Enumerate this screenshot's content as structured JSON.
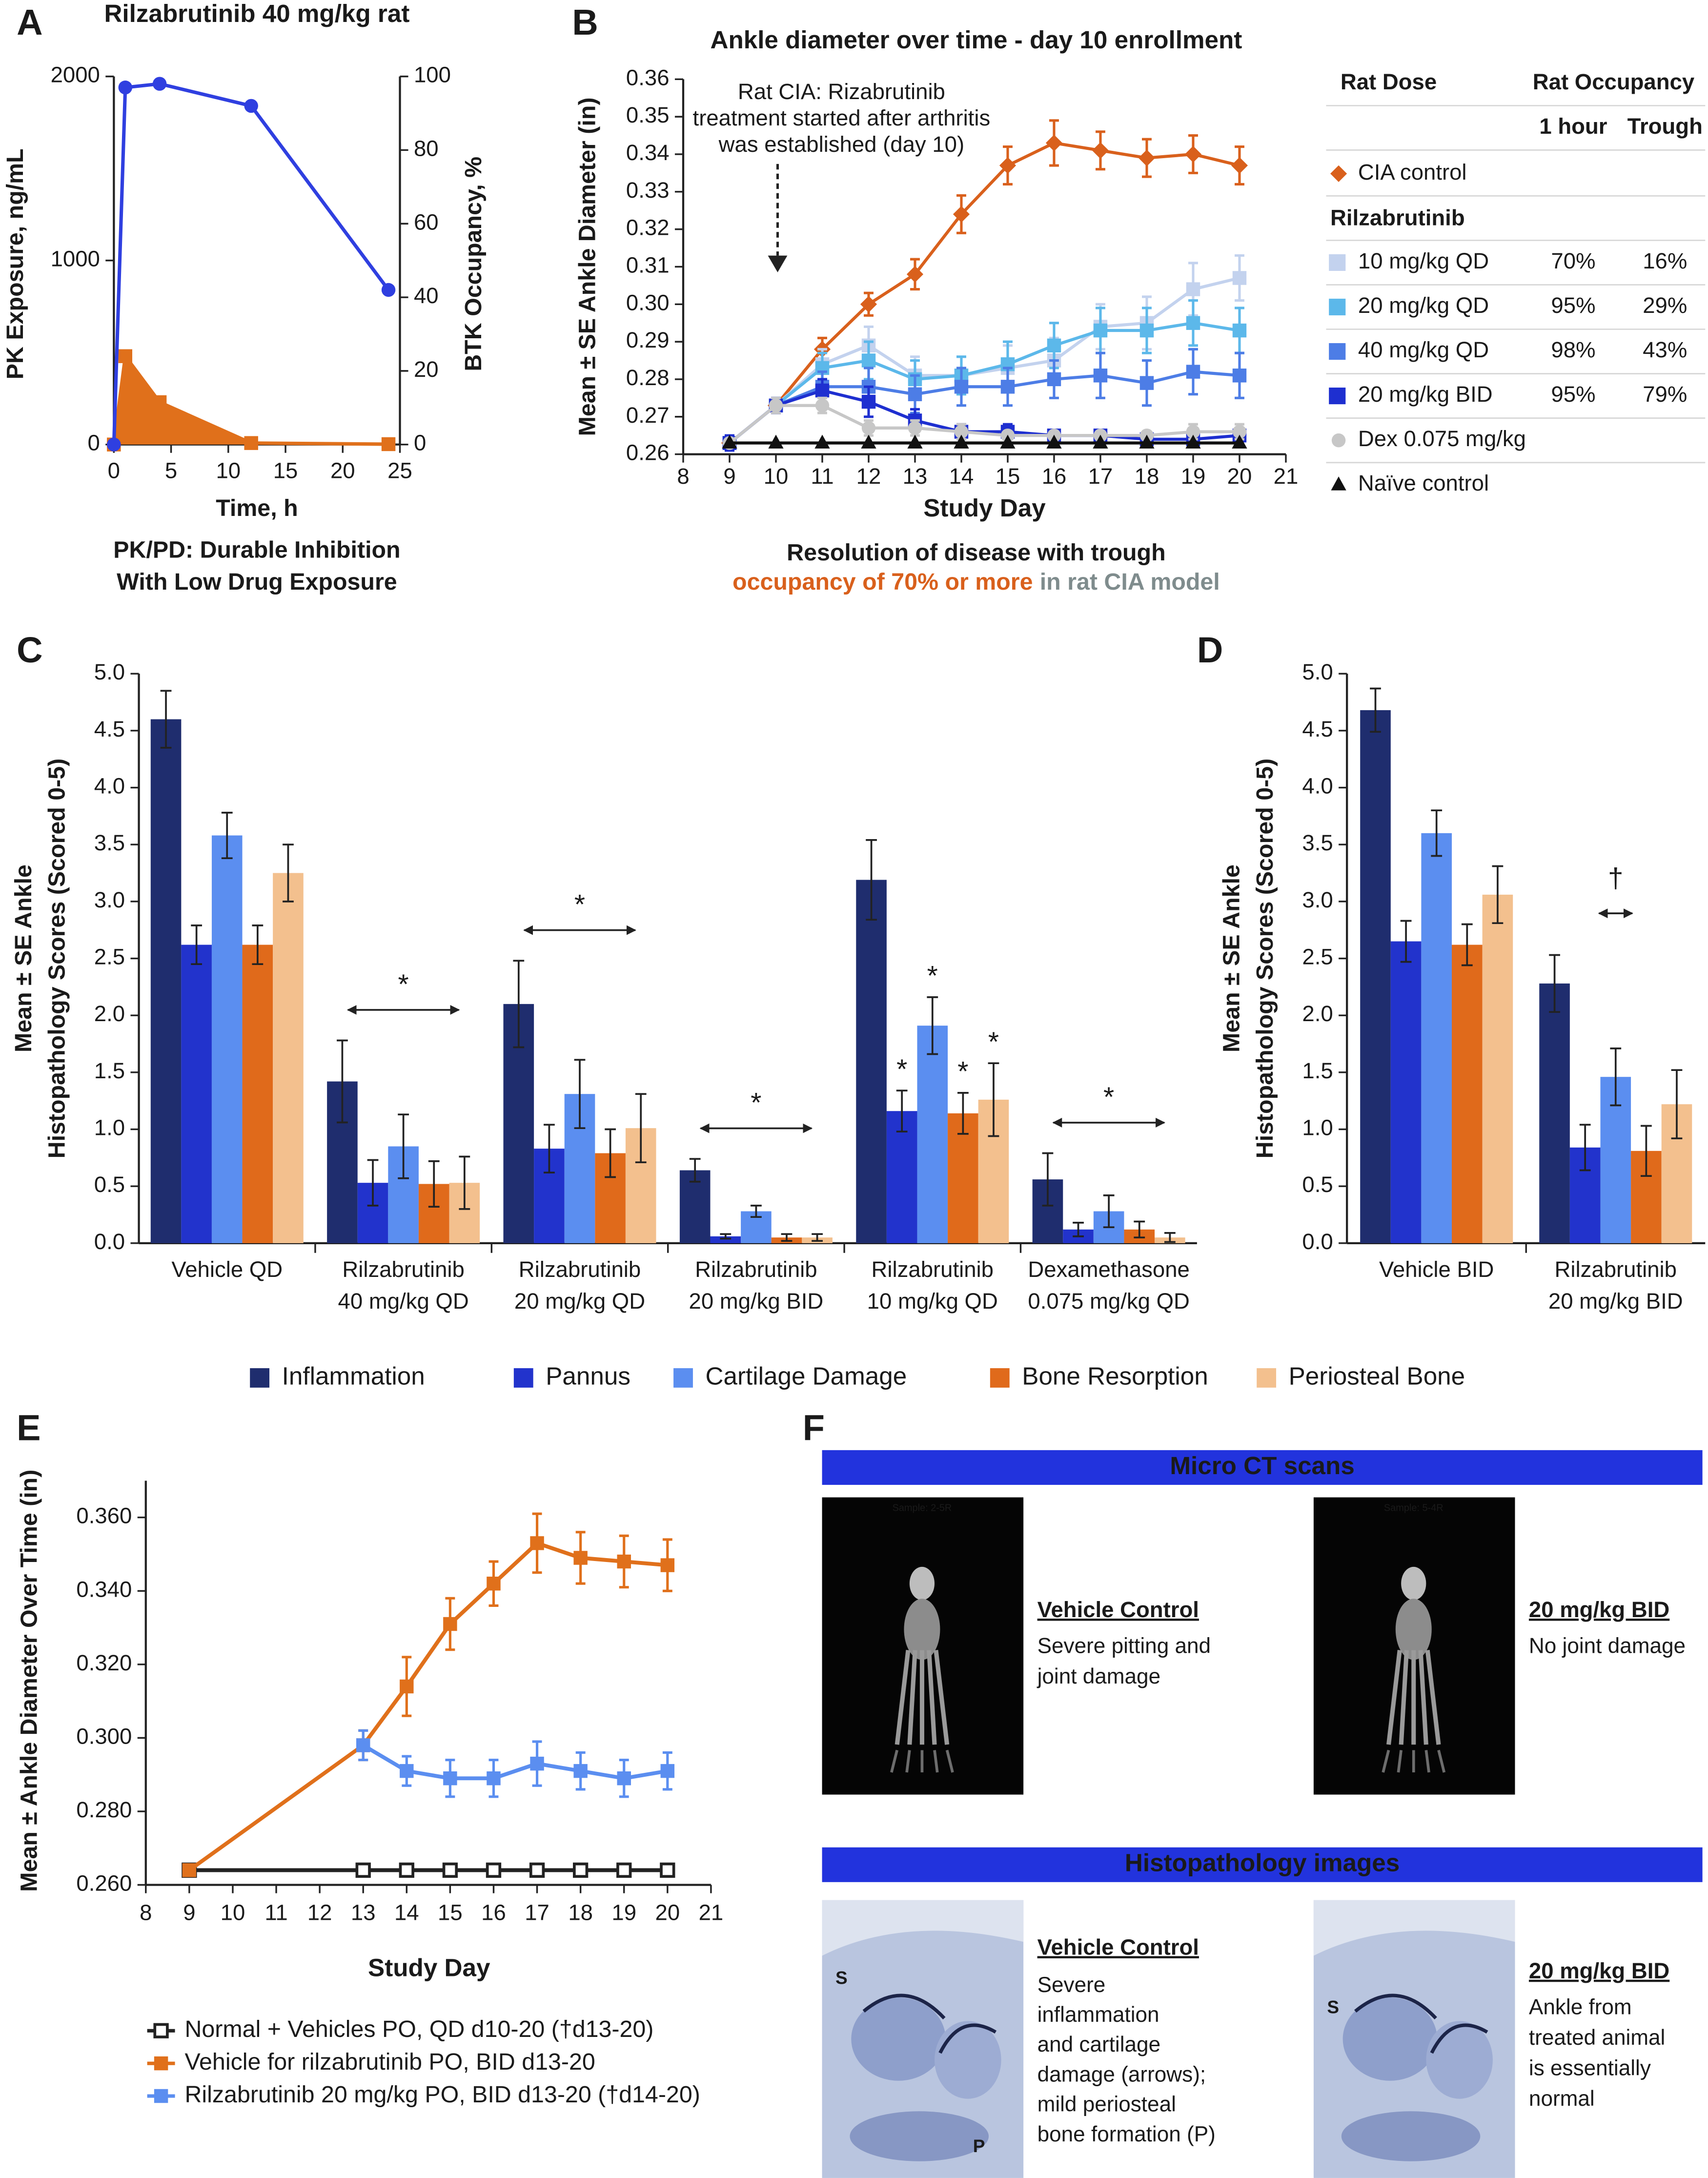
{
  "chart_data": [
    {
      "panel": "A",
      "type": "line",
      "title": "Rilzabrutinib 40 mg/kg rat",
      "xlabel": "Time, h",
      "ylabel": "PK Exposure, ng/mL",
      "y2label": "BTK Occupancy, %",
      "caption": [
        "PK/PD: Durable Inhibition",
        "With Low Drug Exposure"
      ],
      "x": [
        0,
        1,
        4,
        12,
        24
      ],
      "xlim": [
        0,
        25
      ],
      "xticks": [
        0,
        5,
        10,
        15,
        20,
        25
      ],
      "ylim": [
        0,
        2000
      ],
      "yticks": [
        0,
        1000,
        2000
      ],
      "y2lim": [
        0,
        100
      ],
      "y2ticks": [
        0,
        20,
        40,
        60,
        80,
        100
      ],
      "series": [
        {
          "color": "#e0701b",
          "marker": "square",
          "area": true,
          "values": [
            0,
            480,
            230,
            8,
            2
          ]
        },
        {
          "axis": "y2",
          "color": "#2f3fe0",
          "marker": "circle",
          "values": [
            0,
            97,
            98,
            92,
            42
          ]
        }
      ]
    },
    {
      "panel": "B",
      "type": "line",
      "title": "Ankle diameter over time - day 10 enrollment",
      "xlabel": "Study Day",
      "ylabel": "Mean ± SE Ankle Diameter (in)",
      "annotation": [
        "Rat CIA: Rizabrutinib",
        "treatment started after arthritis",
        "was established (day 10)"
      ],
      "caption": [
        "Resolution of disease with trough",
        "occupancy of 70% or more",
        "in rat CIA model"
      ],
      "x": [
        9,
        10,
        11,
        12,
        13,
        14,
        15,
        16,
        17,
        18,
        19,
        20
      ],
      "xlim": [
        8,
        21
      ],
      "xticks": [
        8,
        9,
        10,
        11,
        12,
        13,
        14,
        15,
        16,
        17,
        18,
        19,
        20,
        21
      ],
      "ylim": [
        0.26,
        0.36
      ],
      "yticks": [
        0.26,
        0.27,
        0.28,
        0.29,
        {
          "value": 0.3,
          "label": "0.30"
        },
        0.31,
        0.32,
        0.33,
        0.34,
        0.35,
        0.36
      ],
      "table": {
        "columns": [
          "Rat Dose",
          "Rat Occupancy"
        ],
        "subcolumns": [
          "1 hour",
          "Trough"
        ],
        "group": "Rilzabrutinib"
      },
      "series": [
        {
          "name": "CIA control",
          "color": "#d9601c",
          "marker": "diamond",
          "values": [
            0.263,
            0.273,
            0.288,
            0.3,
            0.308,
            0.324,
            0.337,
            0.343,
            0.341,
            0.339,
            0.34,
            0.337
          ],
          "errors": [
            0.001,
            0.002,
            0.003,
            0.003,
            0.004,
            0.005,
            0.005,
            0.006,
            0.005,
            0.005,
            0.005,
            0.005
          ]
        },
        {
          "name": "10 mg/kg QD",
          "color": "#c3d2ee",
          "marker": "square",
          "occupancy": [
            "70%",
            "16%"
          ],
          "values": [
            0.263,
            0.273,
            0.284,
            0.289,
            0.281,
            0.281,
            0.283,
            0.285,
            0.294,
            0.295,
            0.304,
            0.307
          ],
          "errors": [
            0.002,
            0.002,
            0.004,
            0.005,
            0.005,
            0.005,
            0.006,
            0.006,
            0.006,
            0.007,
            0.007,
            0.006
          ]
        },
        {
          "name": "20 mg/kg QD",
          "color": "#5cb8ea",
          "marker": "square",
          "occupancy": [
            "95%",
            "29%"
          ],
          "values": [
            0.263,
            0.273,
            0.283,
            0.285,
            0.28,
            0.281,
            0.284,
            0.289,
            0.293,
            0.293,
            0.295,
            0.293
          ],
          "errors": [
            0.002,
            0.002,
            0.004,
            0.005,
            0.005,
            0.005,
            0.006,
            0.006,
            0.006,
            0.006,
            0.006,
            0.006
          ]
        },
        {
          "name": "40 mg/kg QD",
          "color": "#4d7de6",
          "marker": "square",
          "occupancy": [
            "98%",
            "43%"
          ],
          "values": [
            0.263,
            0.273,
            0.278,
            0.278,
            0.276,
            0.278,
            0.278,
            0.28,
            0.281,
            0.279,
            0.282,
            0.281
          ],
          "errors": [
            0.002,
            0.002,
            0.004,
            0.005,
            0.005,
            0.005,
            0.005,
            0.005,
            0.006,
            0.006,
            0.006,
            0.006
          ]
        },
        {
          "name": "20 mg/kg BID",
          "color": "#1e2fd0",
          "marker": "square",
          "occupancy": [
            "95%",
            "79%"
          ],
          "values": [
            0.263,
            0.273,
            0.277,
            0.274,
            0.269,
            0.266,
            0.266,
            0.265,
            0.265,
            0.264,
            0.264,
            0.265
          ],
          "errors": [
            0.002,
            0.002,
            0.003,
            0.004,
            0.003,
            0.002,
            0.002,
            0.001,
            0.001,
            0.001,
            0.001,
            0.001
          ]
        },
        {
          "name": "Dex 0.075 mg/kg",
          "color": "#c7c7c7",
          "marker": "circle",
          "values": [
            0.263,
            0.273,
            0.273,
            0.267,
            0.267,
            0.266,
            0.265,
            0.265,
            0.265,
            0.265,
            0.266,
            0.266
          ],
          "errors": [
            0.001,
            0.002,
            0.002,
            0.002,
            0.002,
            0.002,
            0.001,
            0.001,
            0.001,
            0.001,
            0.002,
            0.002
          ]
        },
        {
          "name": "Naïve control",
          "color": "#111111",
          "marker": "triangle",
          "values": [
            0.263,
            0.263,
            0.263,
            0.263,
            0.263,
            0.263,
            0.263,
            0.263,
            0.263,
            0.263,
            0.263,
            0.263
          ]
        }
      ]
    },
    {
      "panel": "C",
      "type": "bar",
      "ylabel": [
        "Mean ± SE Ankle",
        "Histopathology Scores (Scored 0-5)"
      ],
      "categories": [
        [
          "Vehicle QD"
        ],
        [
          "Rilzabrutinib",
          "40 mg/kg QD"
        ],
        [
          "Rilzabrutinib",
          "20 mg/kg QD"
        ],
        [
          "Rilzabrutinib",
          "20 mg/kg BID"
        ],
        [
          "Rilzabrutinib",
          "10 mg/kg QD"
        ],
        [
          "Dexamethasone",
          "0.075 mg/kg QD"
        ]
      ],
      "ylim": [
        0,
        5
      ],
      "yticks": [
        {
          "value": 0,
          "label": "0.0"
        },
        0.5,
        {
          "value": 1,
          "label": "1.0"
        },
        1.5,
        {
          "value": 2,
          "label": "2.0"
        },
        2.5,
        {
          "value": 3,
          "label": "3.0"
        },
        3.5,
        {
          "value": 4,
          "label": "4.0"
        },
        4.5,
        {
          "value": 5,
          "label": "5.0"
        }
      ],
      "annotations": [
        "*",
        "*",
        "*",
        "*",
        "*",
        "*",
        "*",
        "*"
      ],
      "series": [
        {
          "name": "Inflammation",
          "color": "#1f2d6e",
          "values": [
            4.6,
            1.42,
            2.1,
            0.64,
            3.19,
            0.56
          ],
          "errors": [
            0.25,
            0.36,
            0.38,
            0.1,
            0.35,
            0.23
          ]
        },
        {
          "name": "Pannus",
          "color": "#2233cc",
          "values": [
            2.62,
            0.53,
            0.83,
            0.06,
            1.16,
            0.12
          ],
          "errors": [
            0.17,
            0.2,
            0.21,
            0.02,
            0.18,
            0.06
          ]
        },
        {
          "name": "Cartilage Damage",
          "color": "#5b8ef0",
          "values": [
            3.58,
            0.85,
            1.31,
            0.28,
            1.91,
            0.28
          ],
          "errors": [
            0.2,
            0.28,
            0.3,
            0.05,
            0.25,
            0.14
          ]
        },
        {
          "name": "Bone Resorption",
          "color": "#e06a1b",
          "values": [
            2.62,
            0.52,
            0.79,
            0.05,
            1.14,
            0.12
          ],
          "errors": [
            0.17,
            0.2,
            0.21,
            0.03,
            0.18,
            0.07
          ]
        },
        {
          "name": "Periosteal Bone",
          "color": "#f3c08e",
          "values": [
            3.25,
            0.53,
            1.01,
            0.05,
            1.26,
            0.05
          ],
          "errors": [
            0.25,
            0.23,
            0.3,
            0.03,
            0.32,
            0.04
          ]
        }
      ]
    },
    {
      "panel": "D",
      "type": "bar",
      "ylabel": [
        "Mean ± SE Ankle",
        "Histopathology Scores (Scored 0-5)"
      ],
      "categories": [
        [
          "Vehicle BID"
        ],
        [
          "Rilzabrutinib",
          "20 mg/kg BID"
        ]
      ],
      "ylim": [
        0,
        5
      ],
      "yticks": [
        {
          "value": 0,
          "label": "0.0"
        },
        0.5,
        {
          "value": 1,
          "label": "1.0"
        },
        1.5,
        {
          "value": 2,
          "label": "2.0"
        },
        2.5,
        {
          "value": 3,
          "label": "3.0"
        },
        3.5,
        {
          "value": 4,
          "label": "4.0"
        },
        4.5,
        {
          "value": 5,
          "label": "5.0"
        }
      ],
      "annotations": [
        "†"
      ],
      "series": [
        {
          "color": "#1f2d6e",
          "values": [
            4.68,
            2.28
          ],
          "errors": [
            0.19,
            0.25
          ]
        },
        {
          "color": "#2233cc",
          "values": [
            2.65,
            0.84
          ],
          "errors": [
            0.18,
            0.2
          ]
        },
        {
          "color": "#5b8ef0",
          "values": [
            3.6,
            1.46
          ],
          "errors": [
            0.2,
            0.25
          ]
        },
        {
          "color": "#e06a1b",
          "values": [
            2.62,
            0.81
          ],
          "errors": [
            0.18,
            0.22
          ]
        },
        {
          "color": "#f3c08e",
          "values": [
            3.06,
            1.22
          ],
          "errors": [
            0.25,
            0.3
          ]
        }
      ]
    },
    {
      "panel": "E",
      "type": "line",
      "xlabel": "Study Day",
      "ylabel": "Mean ± Ankle Diameter Over Time (in)",
      "x": [
        9,
        13,
        14,
        15,
        16,
        17,
        18,
        19,
        20
      ],
      "xlim": [
        8,
        21
      ],
      "xticks": [
        8,
        9,
        10,
        11,
        12,
        13,
        14,
        15,
        16,
        17,
        18,
        19,
        20,
        21
      ],
      "ylim": [
        0.26,
        0.37
      ],
      "yticks": [
        {
          "value": 0.26,
          "label": "0.260"
        },
        {
          "value": 0.28,
          "label": "0.280"
        },
        {
          "value": 0.3,
          "label": "0.300"
        },
        {
          "value": 0.32,
          "label": "0.320"
        },
        {
          "value": 0.34,
          "label": "0.340"
        },
        {
          "value": 0.36,
          "label": "0.360"
        }
      ],
      "series": [
        {
          "name": "Normal + Vehicles PO, QD d10-20 (†d13-20)",
          "color": "#222222",
          "marker": "open-square",
          "values": [
            0.264,
            0.264,
            0.264,
            0.264,
            0.264,
            0.264,
            0.264,
            0.264,
            0.264
          ]
        },
        {
          "name": "Vehicle for rilzabrutinib PO, BID d13-20",
          "color": "#e0701b",
          "marker": "square",
          "values": [
            0.264,
            0.298,
            0.314,
            0.331,
            0.342,
            0.353,
            0.349,
            0.348,
            0.347
          ],
          "errors": [
            null,
            0.004,
            0.008,
            0.007,
            0.006,
            0.008,
            0.007,
            0.007,
            0.007
          ]
        },
        {
          "name": "Rilzabrutinib 20 mg/kg PO, BID d13-20 (†d14-20)",
          "color": "#5b8ef0",
          "marker": "square",
          "values": [
            null,
            0.298,
            0.291,
            0.289,
            0.289,
            0.293,
            0.291,
            0.289,
            0.291
          ],
          "errors": [
            null,
            0.004,
            0.004,
            0.005,
            0.005,
            0.006,
            0.005,
            0.005,
            0.005
          ]
        }
      ]
    }
  ],
  "panel_f": {
    "label": "F",
    "sections": [
      {
        "header": "Micro CT scans",
        "items": [
          {
            "image_text": [
              "Sample: 2-5R"
            ],
            "title": "Vehicle Control",
            "lines": [
              "Severe pitting and",
              "joint damage"
            ]
          },
          {
            "image_text": [
              "Sample: 5-4R"
            ],
            "title": "20 mg/kg BID",
            "lines": [
              "No joint damage"
            ]
          }
        ]
      },
      {
        "header": "Histopathology images",
        "items": [
          {
            "image_text": [
              "S",
              "P"
            ],
            "title": "Vehicle Control",
            "lines": [
              "Severe",
              "inflammation",
              "and cartilage",
              "damage (arrows);",
              "mild periosteal",
              "bone formation (P)"
            ]
          },
          {
            "image_text": [
              "S"
            ],
            "title": "20 mg/kg BID",
            "lines": [
              "Ankle from",
              "treated animal",
              "is essentially",
              "normal"
            ]
          }
        ]
      }
    ]
  }
}
